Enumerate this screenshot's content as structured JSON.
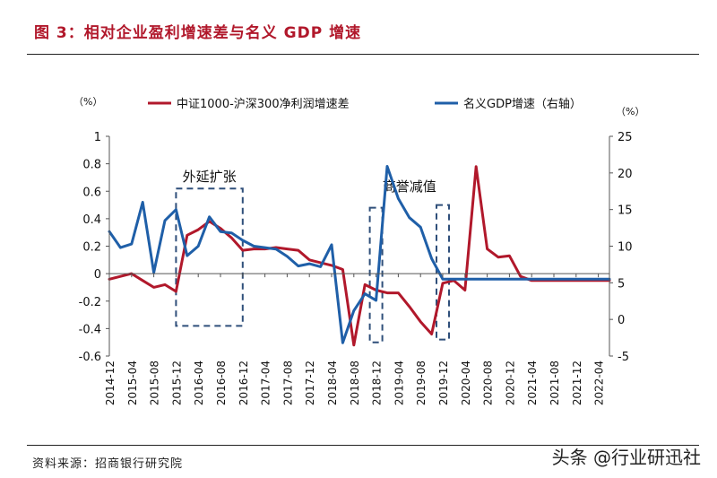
{
  "title": "图 3：相对企业盈利增速差与名义 GDP 增速",
  "source": "资料来源：招商银行研究院",
  "watermark": "头条 @行业研迅社",
  "chart_data": {
    "type": "line",
    "categories": [
      "2014-12",
      "2015-02",
      "2015-04",
      "2015-06",
      "2015-08",
      "2015-10",
      "2015-12",
      "2016-02",
      "2016-04",
      "2016-06",
      "2016-08",
      "2016-10",
      "2016-12",
      "2017-02",
      "2017-04",
      "2017-06",
      "2017-08",
      "2017-10",
      "2017-12",
      "2018-02",
      "2018-04",
      "2018-06",
      "2018-08",
      "2018-10",
      "2018-12",
      "2019-02",
      "2019-04",
      "2019-06",
      "2019-08",
      "2019-10",
      "2019-12",
      "2020-02",
      "2020-04",
      "2020-06",
      "2020-08",
      "2020-10",
      "2020-12",
      "2021-02",
      "2021-04",
      "2021-06",
      "2021-08",
      "2021-10",
      "2021-12",
      "2022-02",
      "2022-04",
      "2022-06"
    ],
    "xtick_labels": [
      "2014-12",
      "2015-04",
      "2015-08",
      "2015-12",
      "2016-04",
      "2016-08",
      "2016-12",
      "2017-04",
      "2017-08",
      "2017-12",
      "2018-04",
      "2018-08",
      "2018-12",
      "2019-04",
      "2019-08",
      "2019-12",
      "2020-04",
      "2020-08",
      "2020-12",
      "2021-04",
      "2021-08",
      "2021-12",
      "2022-04"
    ],
    "series": [
      {
        "name": "中证1000-沪深300净利润增速差",
        "axis": "left",
        "color": "#b1182b",
        "values": [
          -0.04,
          -0.02,
          0.0,
          -0.05,
          -0.1,
          -0.08,
          -0.13,
          0.28,
          0.32,
          0.38,
          0.33,
          0.26,
          0.17,
          0.18,
          0.18,
          0.19,
          0.18,
          0.17,
          0.1,
          0.08,
          0.06,
          0.03,
          -0.52,
          -0.08,
          -0.12,
          -0.14,
          -0.14,
          -0.24,
          -0.35,
          -0.44,
          -0.07,
          -0.05,
          -0.12,
          0.78,
          0.18,
          0.12,
          0.13,
          -0.02,
          -0.05,
          -0.05,
          -0.05,
          -0.05,
          -0.05,
          -0.05,
          -0.05,
          -0.05
        ]
      },
      {
        "name": "名义GDP增速（右轴）",
        "axis": "right",
        "color": "#1f5fa8",
        "values": [
          12,
          9.8,
          10.3,
          16,
          6.4,
          13.5,
          15,
          8.7,
          10,
          14,
          12,
          11.8,
          10.8,
          10,
          9.8,
          9.6,
          8.6,
          7.3,
          7.6,
          7.2,
          10.2,
          -3.2,
          1.2,
          3.5,
          2.6,
          20.9,
          16.5,
          13.9,
          12.6,
          8.3,
          5.5,
          5.5,
          5.5,
          5.5,
          5.5,
          5.5,
          5.5,
          5.5,
          5.5,
          5.5,
          5.5,
          5.5,
          5.5,
          5.5,
          5.5,
          5.5
        ]
      }
    ],
    "ylim_left": [
      -0.6,
      1
    ],
    "yticks_left": [
      "1",
      "0.8",
      "0.6",
      "0.4",
      "0.2",
      "0",
      "-0.2",
      "-0.4",
      "-0.6"
    ],
    "ylim_right": [
      -5,
      25
    ],
    "yticks_right": [
      "25",
      "20",
      "15",
      "10",
      "5",
      "0",
      "-5"
    ],
    "ylabel_left": "（%）",
    "ylabel_right": "（%）",
    "legend_position": "top",
    "annotations": [
      {
        "text": "外延扩张",
        "x_start": "2015-12",
        "x_end": "2016-12",
        "y_top": 0.62,
        "y_bottom": -0.38
      },
      {
        "text": "商誉减值",
        "x_start": "2018-12",
        "x_end": "2018-12",
        "y_top": 0.48,
        "y_bottom": -0.5
      },
      {
        "text": "商誉减值",
        "x_start": "2019-12",
        "x_end": "2019-12",
        "y_top": 0.5,
        "y_bottom": -0.48
      }
    ]
  }
}
